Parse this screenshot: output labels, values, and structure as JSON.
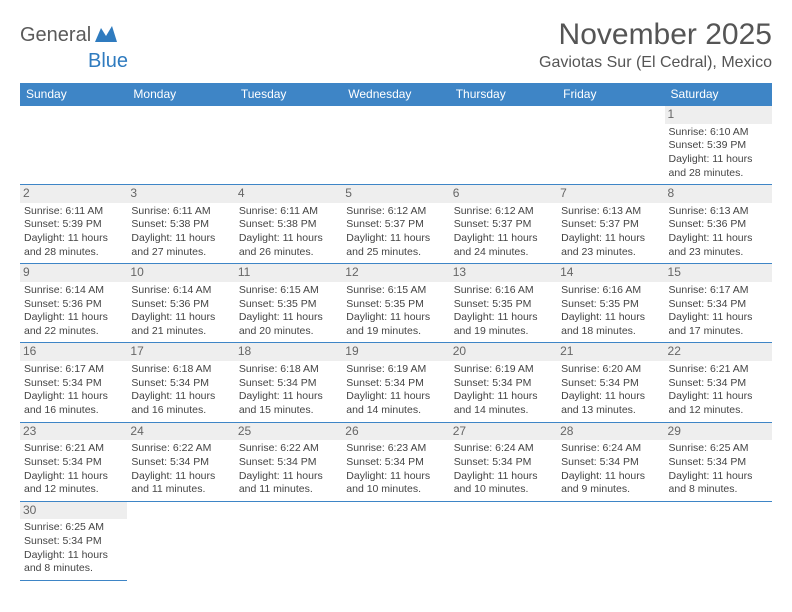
{
  "brand": {
    "part1": "General",
    "part2": "Blue"
  },
  "title": "November 2025",
  "location": "Gaviotas Sur (El Cedral), Mexico",
  "style": {
    "header_bg": "#3e85c6",
    "header_fg": "#ffffff",
    "border_color": "#3e85c6",
    "daynum_bg": "#eeeeee",
    "text_color": "#444444",
    "title_color": "#555555",
    "title_fontsize": 30,
    "location_fontsize": 16,
    "cell_fontsize": 10.5
  },
  "weekdays": [
    "Sunday",
    "Monday",
    "Tuesday",
    "Wednesday",
    "Thursday",
    "Friday",
    "Saturday"
  ],
  "weeks": [
    [
      null,
      null,
      null,
      null,
      null,
      null,
      {
        "n": "1",
        "sunrise": "Sunrise: 6:10 AM",
        "sunset": "Sunset: 5:39 PM",
        "daylight": "Daylight: 11 hours and 28 minutes."
      }
    ],
    [
      {
        "n": "2",
        "sunrise": "Sunrise: 6:11 AM",
        "sunset": "Sunset: 5:39 PM",
        "daylight": "Daylight: 11 hours and 28 minutes."
      },
      {
        "n": "3",
        "sunrise": "Sunrise: 6:11 AM",
        "sunset": "Sunset: 5:38 PM",
        "daylight": "Daylight: 11 hours and 27 minutes."
      },
      {
        "n": "4",
        "sunrise": "Sunrise: 6:11 AM",
        "sunset": "Sunset: 5:38 PM",
        "daylight": "Daylight: 11 hours and 26 minutes."
      },
      {
        "n": "5",
        "sunrise": "Sunrise: 6:12 AM",
        "sunset": "Sunset: 5:37 PM",
        "daylight": "Daylight: 11 hours and 25 minutes."
      },
      {
        "n": "6",
        "sunrise": "Sunrise: 6:12 AM",
        "sunset": "Sunset: 5:37 PM",
        "daylight": "Daylight: 11 hours and 24 minutes."
      },
      {
        "n": "7",
        "sunrise": "Sunrise: 6:13 AM",
        "sunset": "Sunset: 5:37 PM",
        "daylight": "Daylight: 11 hours and 23 minutes."
      },
      {
        "n": "8",
        "sunrise": "Sunrise: 6:13 AM",
        "sunset": "Sunset: 5:36 PM",
        "daylight": "Daylight: 11 hours and 23 minutes."
      }
    ],
    [
      {
        "n": "9",
        "sunrise": "Sunrise: 6:14 AM",
        "sunset": "Sunset: 5:36 PM",
        "daylight": "Daylight: 11 hours and 22 minutes."
      },
      {
        "n": "10",
        "sunrise": "Sunrise: 6:14 AM",
        "sunset": "Sunset: 5:36 PM",
        "daylight": "Daylight: 11 hours and 21 minutes."
      },
      {
        "n": "11",
        "sunrise": "Sunrise: 6:15 AM",
        "sunset": "Sunset: 5:35 PM",
        "daylight": "Daylight: 11 hours and 20 minutes."
      },
      {
        "n": "12",
        "sunrise": "Sunrise: 6:15 AM",
        "sunset": "Sunset: 5:35 PM",
        "daylight": "Daylight: 11 hours and 19 minutes."
      },
      {
        "n": "13",
        "sunrise": "Sunrise: 6:16 AM",
        "sunset": "Sunset: 5:35 PM",
        "daylight": "Daylight: 11 hours and 19 minutes."
      },
      {
        "n": "14",
        "sunrise": "Sunrise: 6:16 AM",
        "sunset": "Sunset: 5:35 PM",
        "daylight": "Daylight: 11 hours and 18 minutes."
      },
      {
        "n": "15",
        "sunrise": "Sunrise: 6:17 AM",
        "sunset": "Sunset: 5:34 PM",
        "daylight": "Daylight: 11 hours and 17 minutes."
      }
    ],
    [
      {
        "n": "16",
        "sunrise": "Sunrise: 6:17 AM",
        "sunset": "Sunset: 5:34 PM",
        "daylight": "Daylight: 11 hours and 16 minutes."
      },
      {
        "n": "17",
        "sunrise": "Sunrise: 6:18 AM",
        "sunset": "Sunset: 5:34 PM",
        "daylight": "Daylight: 11 hours and 16 minutes."
      },
      {
        "n": "18",
        "sunrise": "Sunrise: 6:18 AM",
        "sunset": "Sunset: 5:34 PM",
        "daylight": "Daylight: 11 hours and 15 minutes."
      },
      {
        "n": "19",
        "sunrise": "Sunrise: 6:19 AM",
        "sunset": "Sunset: 5:34 PM",
        "daylight": "Daylight: 11 hours and 14 minutes."
      },
      {
        "n": "20",
        "sunrise": "Sunrise: 6:19 AM",
        "sunset": "Sunset: 5:34 PM",
        "daylight": "Daylight: 11 hours and 14 minutes."
      },
      {
        "n": "21",
        "sunrise": "Sunrise: 6:20 AM",
        "sunset": "Sunset: 5:34 PM",
        "daylight": "Daylight: 11 hours and 13 minutes."
      },
      {
        "n": "22",
        "sunrise": "Sunrise: 6:21 AM",
        "sunset": "Sunset: 5:34 PM",
        "daylight": "Daylight: 11 hours and 12 minutes."
      }
    ],
    [
      {
        "n": "23",
        "sunrise": "Sunrise: 6:21 AM",
        "sunset": "Sunset: 5:34 PM",
        "daylight": "Daylight: 11 hours and 12 minutes."
      },
      {
        "n": "24",
        "sunrise": "Sunrise: 6:22 AM",
        "sunset": "Sunset: 5:34 PM",
        "daylight": "Daylight: 11 hours and 11 minutes."
      },
      {
        "n": "25",
        "sunrise": "Sunrise: 6:22 AM",
        "sunset": "Sunset: 5:34 PM",
        "daylight": "Daylight: 11 hours and 11 minutes."
      },
      {
        "n": "26",
        "sunrise": "Sunrise: 6:23 AM",
        "sunset": "Sunset: 5:34 PM",
        "daylight": "Daylight: 11 hours and 10 minutes."
      },
      {
        "n": "27",
        "sunrise": "Sunrise: 6:24 AM",
        "sunset": "Sunset: 5:34 PM",
        "daylight": "Daylight: 11 hours and 10 minutes."
      },
      {
        "n": "28",
        "sunrise": "Sunrise: 6:24 AM",
        "sunset": "Sunset: 5:34 PM",
        "daylight": "Daylight: 11 hours and 9 minutes."
      },
      {
        "n": "29",
        "sunrise": "Sunrise: 6:25 AM",
        "sunset": "Sunset: 5:34 PM",
        "daylight": "Daylight: 11 hours and 8 minutes."
      }
    ],
    [
      {
        "n": "30",
        "sunrise": "Sunrise: 6:25 AM",
        "sunset": "Sunset: 5:34 PM",
        "daylight": "Daylight: 11 hours and 8 minutes."
      },
      null,
      null,
      null,
      null,
      null,
      null
    ]
  ]
}
